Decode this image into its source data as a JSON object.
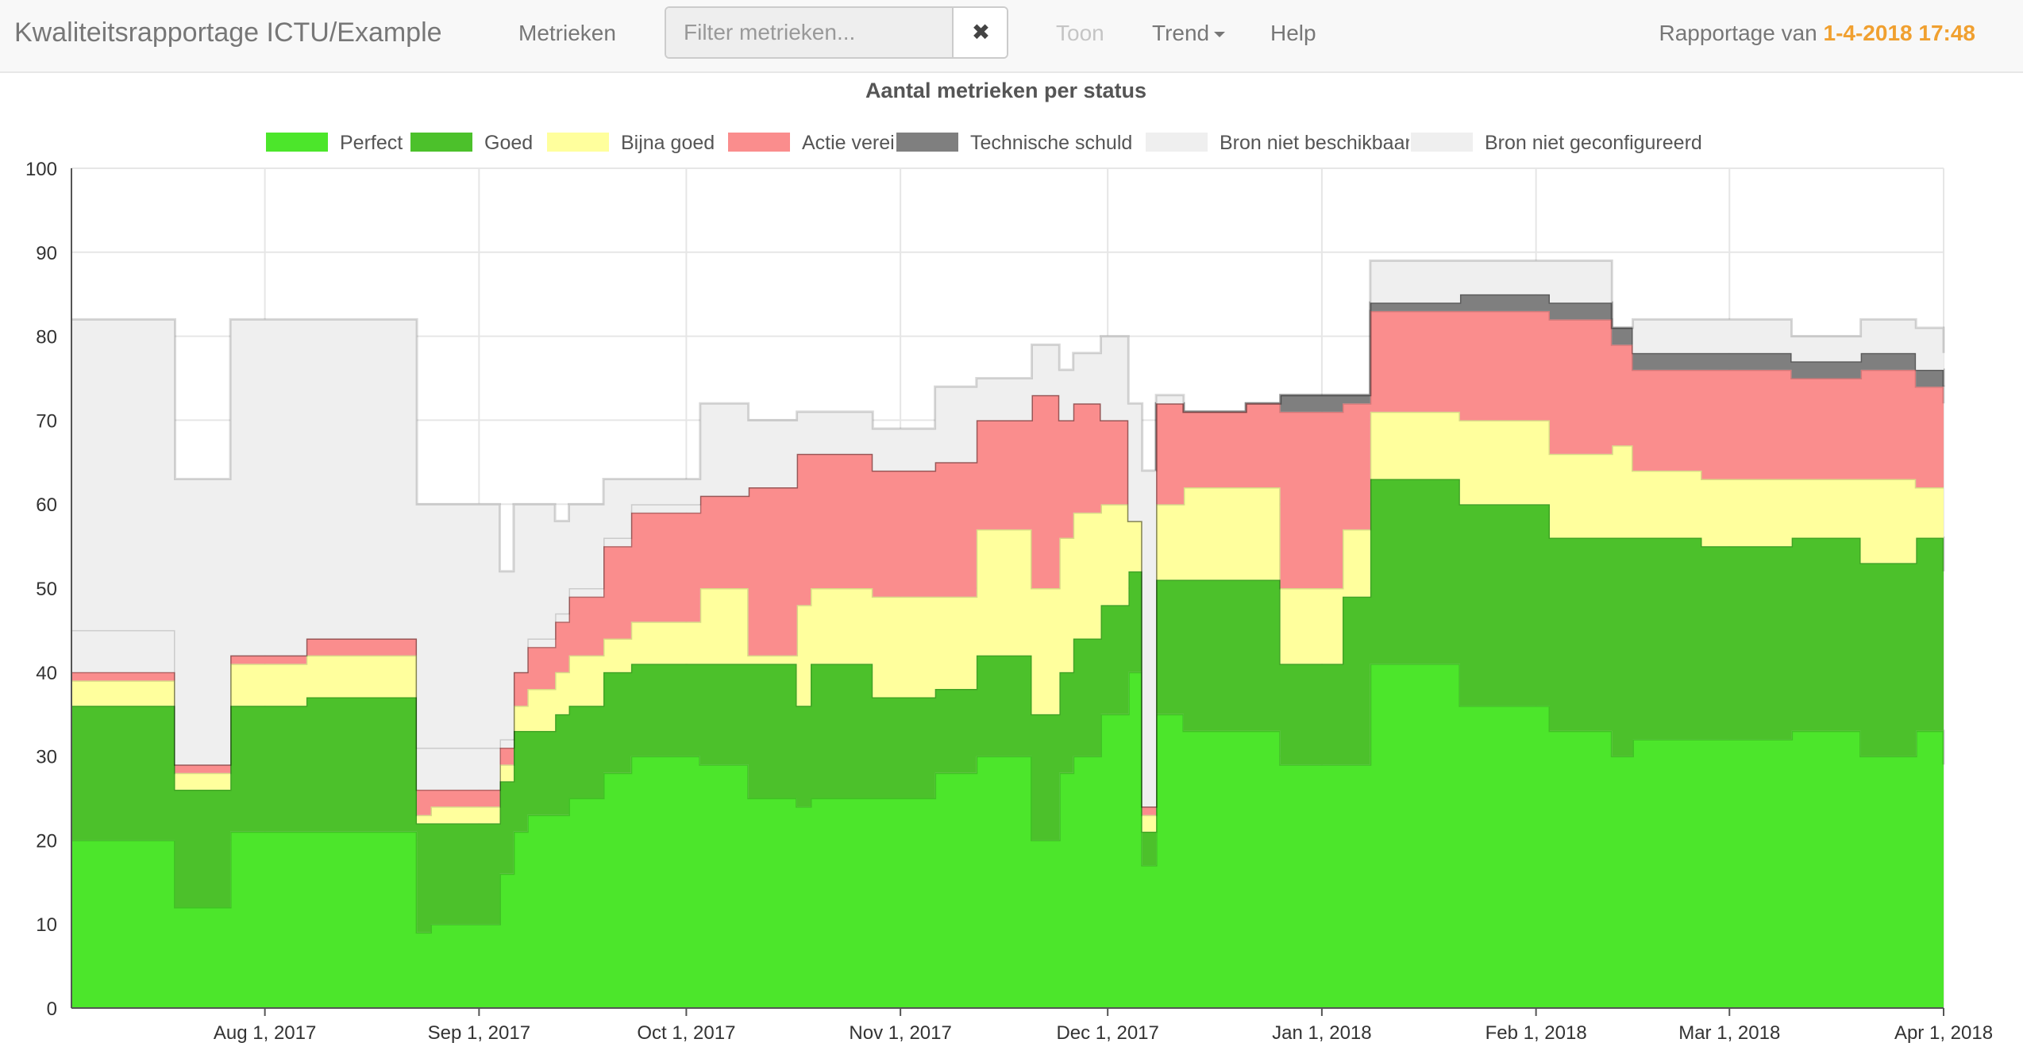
{
  "navbar": {
    "brand": "Kwaliteitsrapportage ICTU/Example",
    "metrics_link": "Metrieken",
    "filter_placeholder": "Filter metrieken...",
    "clear_icon": "✖",
    "show_link": "Toon",
    "trend_menu": "Trend",
    "help_link": "Help",
    "report_label": "Rapportage van",
    "report_date": "1-4-2018 17:48"
  },
  "chart_data": {
    "type": "area",
    "stacked": true,
    "title": "Aantal metrieken per status",
    "ylim": [
      0,
      100
    ],
    "y_ticks": [
      0,
      10,
      20,
      30,
      40,
      50,
      60,
      70,
      80,
      90,
      100
    ],
    "xlim": [
      "2017-07-04",
      "2018-04-01"
    ],
    "x_ticks": [
      {
        "date": "2017-08-01",
        "label": "Aug 1, 2017"
      },
      {
        "date": "2017-09-01",
        "label": "Sep 1, 2017"
      },
      {
        "date": "2017-10-01",
        "label": "Oct 1, 2017"
      },
      {
        "date": "2017-11-01",
        "label": "Nov 1, 2017"
      },
      {
        "date": "2017-12-01",
        "label": "Dec 1, 2017"
      },
      {
        "date": "2018-01-01",
        "label": "Jan 1, 2018"
      },
      {
        "date": "2018-02-01",
        "label": "Feb 1, 2018"
      },
      {
        "date": "2018-03-01",
        "label": "Mar 1, 2018"
      },
      {
        "date": "2018-04-01",
        "label": "Apr 1, 2018"
      }
    ],
    "grid": true,
    "legend_position": "top",
    "x": [
      "2017-07-04",
      "2017-07-19",
      "2017-07-25",
      "2017-07-27",
      "2017-08-07",
      "2017-08-21",
      "2017-08-23",
      "2017-08-25",
      "2017-09-03",
      "2017-09-04",
      "2017-09-06",
      "2017-09-08",
      "2017-09-12",
      "2017-09-14",
      "2017-09-19",
      "2017-09-23",
      "2017-10-03",
      "2017-10-10",
      "2017-10-17",
      "2017-10-19",
      "2017-10-28",
      "2017-11-06",
      "2017-11-12",
      "2017-11-20",
      "2017-11-24",
      "2017-11-26",
      "2017-11-30",
      "2017-12-04",
      "2017-12-06",
      "2017-12-08",
      "2017-12-12",
      "2017-12-21",
      "2017-12-26",
      "2018-01-04",
      "2018-01-08",
      "2018-01-21",
      "2018-02-03",
      "2018-02-12",
      "2018-02-15",
      "2018-02-25",
      "2018-03-10",
      "2018-03-20",
      "2018-03-28",
      "2018-04-01"
    ],
    "series": [
      {
        "name": "Perfect",
        "color": "#4ce62b",
        "values": [
          20,
          12,
          12,
          21,
          21,
          21,
          9,
          10,
          10,
          16,
          21,
          23,
          23,
          25,
          28,
          30,
          29,
          25,
          24,
          25,
          25,
          28,
          30,
          20,
          28,
          30,
          35,
          40,
          17,
          35,
          33,
          33,
          29,
          29,
          41,
          36,
          33,
          30,
          32,
          32,
          33,
          30,
          33,
          29
        ]
      },
      {
        "name": "Goed",
        "color": "#4cc12b",
        "values": [
          16,
          14,
          14,
          15,
          16,
          16,
          13,
          12,
          12,
          11,
          12,
          10,
          12,
          11,
          12,
          11,
          12,
          16,
          12,
          16,
          12,
          10,
          12,
          15,
          12,
          14,
          13,
          12,
          4,
          16,
          18,
          18,
          12,
          20,
          22,
          24,
          23,
          26,
          24,
          23,
          23,
          23,
          23,
          23
        ]
      },
      {
        "name": "Bijna goed",
        "color": "#ffff9d",
        "values": [
          3,
          2,
          2,
          5,
          5,
          5,
          1,
          2,
          2,
          2,
          3,
          5,
          5,
          6,
          4,
          5,
          9,
          1,
          12,
          9,
          12,
          11,
          15,
          15,
          16,
          15,
          12,
          6,
          2,
          9,
          11,
          11,
          9,
          8,
          8,
          10,
          10,
          11,
          8,
          8,
          7,
          10,
          6,
          10
        ]
      },
      {
        "name": "Actie vereist",
        "color": "#fa8d8d",
        "values": [
          1,
          1,
          1,
          1,
          2,
          2,
          3,
          2,
          2,
          2,
          4,
          5,
          6,
          7,
          11,
          13,
          11,
          20,
          18,
          16,
          15,
          16,
          13,
          23,
          14,
          13,
          10,
          0,
          1,
          12,
          9,
          10,
          21,
          15,
          12,
          13,
          16,
          12,
          12,
          13,
          12,
          13,
          12,
          10
        ]
      },
      {
        "name": "Technische schuld",
        "color": "#7f7f7f",
        "values": [
          0,
          0,
          0,
          0,
          0,
          0,
          0,
          0,
          0,
          0,
          0,
          0,
          0,
          0,
          0,
          0,
          0,
          0,
          0,
          0,
          0,
          0,
          0,
          0,
          0,
          0,
          0,
          0,
          0,
          0,
          0,
          0,
          2,
          1,
          1,
          2,
          2,
          2,
          2,
          2,
          2,
          2,
          2,
          2
        ]
      },
      {
        "name": "Bron niet beschikbaar",
        "color": "#efefef",
        "values": [
          5,
          0,
          0,
          0,
          0,
          0,
          5,
          5,
          5,
          1,
          0,
          1,
          1,
          1,
          1,
          1,
          0,
          0,
          0,
          0,
          0,
          0,
          0,
          0,
          0,
          0,
          0,
          0,
          0,
          0,
          0,
          0,
          0,
          0,
          0,
          0,
          0,
          0,
          0,
          0,
          0,
          0,
          0,
          0
        ]
      },
      {
        "name": "Bron niet geconfigureerd",
        "color": "#efefef",
        "values": [
          37,
          34,
          34,
          40,
          38,
          38,
          29,
          29,
          29,
          20,
          20,
          16,
          11,
          10,
          7,
          3,
          11,
          8,
          5,
          5,
          5,
          9,
          5,
          6,
          6,
          6,
          10,
          14,
          40,
          1,
          0,
          0,
          0,
          0,
          5,
          4,
          5,
          0,
          4,
          4,
          3,
          4,
          5,
          4
        ]
      }
    ]
  }
}
